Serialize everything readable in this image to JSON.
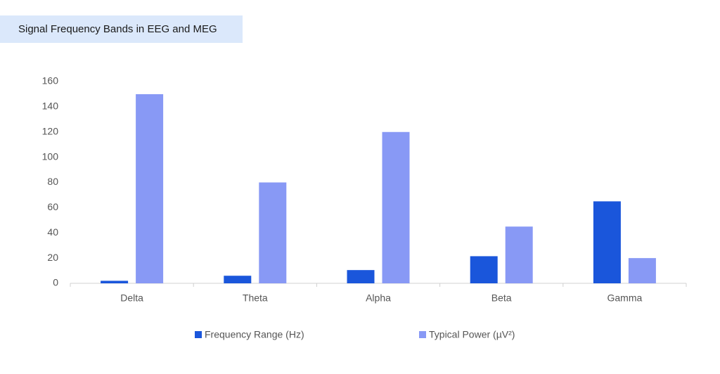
{
  "chart_data": {
    "type": "bar",
    "title": "Signal Frequency Bands in EEG and MEG",
    "categories": [
      "Delta",
      "Theta",
      "Alpha",
      "Beta",
      "Gamma"
    ],
    "series": [
      {
        "name": "Frequency Range (Hz)",
        "color": "#1a56db",
        "values": [
          2,
          6,
          10.5,
          21.5,
          65
        ]
      },
      {
        "name": "Typical Power (µV²)",
        "color": "#8899f5",
        "values": [
          150,
          80,
          120,
          45,
          20
        ]
      }
    ],
    "ylim": [
      0,
      160
    ],
    "yticks": [
      0,
      20,
      40,
      60,
      80,
      100,
      120,
      140,
      160
    ],
    "grid": false,
    "legend": "bottom"
  }
}
